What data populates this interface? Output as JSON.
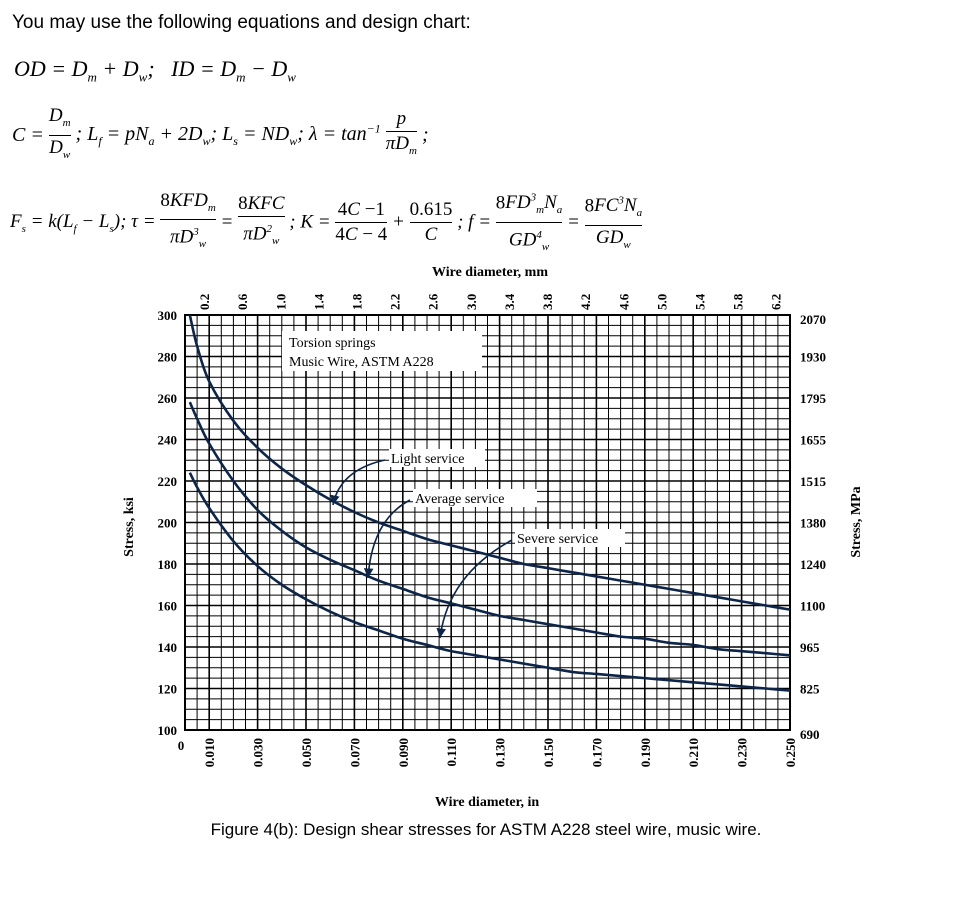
{
  "intro": "You may use the following equations and design chart:",
  "equations": {
    "line1": "OD = D_m + D_w;   ID = D_m − D_w",
    "line2": "C = D_m / D_w;   L_f = pN_a + 2D_w;   L_s = ND_w;   λ = tan⁻¹ p/(πD_m);",
    "line3": "F_s = k(L_f − L_s);   τ = 8KFD_m/(πD_w³) = 8KFC/(πD_w²);   K = (4C−1)/(4C−4) + 0.615/C;   f = 8FD_m³N_a/(GD_w⁴) = 8FC³N_a/(GD_w)"
  },
  "caption": "Figure 4(b): Design shear stresses for ASTM A228 steel wire, music wire.",
  "chart_data": {
    "type": "line",
    "title": "Torsion springs",
    "subtitle": "Music Wire, ASTM A228",
    "xlabel": "Wire diameter, in",
    "xlabel_top": "Wire diameter, mm",
    "ylabel": "Stress, ksi",
    "ylabel_right": "Stress, MPa",
    "xlim": [
      0,
      0.25
    ],
    "ylim": [
      100,
      300
    ],
    "x_ticks": [
      "0",
      "0.010",
      "0.030",
      "0.050",
      "0.070",
      "0.090",
      "0.110",
      "0.130",
      "0.150",
      "0.170",
      "0.190",
      "0.210",
      "0.230",
      "0.250"
    ],
    "x_top_ticks": [
      "0.2",
      "0.6",
      "1.0",
      "1.4",
      "1.8",
      "2.2",
      "2.6",
      "3.0",
      "3.4",
      "3.8",
      "4.2",
      "4.6",
      "5.0",
      "5.4",
      "5.8",
      "6.2"
    ],
    "y_ticks": [
      "100",
      "120",
      "140",
      "160",
      "180",
      "200",
      "220",
      "240",
      "260",
      "280",
      "300"
    ],
    "y_right_ticks": [
      "690",
      "825",
      "965",
      "1100",
      "1240",
      "1380",
      "1515",
      "1655",
      "1795",
      "1930",
      "2070"
    ],
    "grid": true,
    "series": [
      {
        "name": "Light service",
        "x": [
          0.002,
          0.005,
          0.01,
          0.02,
          0.03,
          0.04,
          0.05,
          0.06,
          0.07,
          0.08,
          0.09,
          0.1,
          0.11,
          0.12,
          0.13,
          0.14,
          0.15,
          0.16,
          0.17,
          0.18,
          0.19,
          0.2,
          0.21,
          0.22,
          0.23,
          0.24,
          0.25
        ],
        "y": [
          300,
          285,
          268,
          249,
          236,
          226,
          218,
          211,
          205,
          200,
          196,
          192,
          189,
          186,
          183,
          180,
          178,
          176,
          174,
          172,
          170,
          168,
          166,
          164,
          162,
          160,
          158
        ]
      },
      {
        "name": "Average service",
        "x": [
          0.002,
          0.005,
          0.01,
          0.02,
          0.03,
          0.04,
          0.05,
          0.06,
          0.07,
          0.08,
          0.09,
          0.1,
          0.11,
          0.12,
          0.13,
          0.14,
          0.15,
          0.16,
          0.17,
          0.18,
          0.19,
          0.2,
          0.21,
          0.22,
          0.23,
          0.24,
          0.25
        ],
        "y": [
          258,
          250,
          238,
          220,
          206,
          196,
          188,
          182,
          177,
          172,
          168,
          164,
          161,
          158,
          155,
          153,
          151,
          149,
          147,
          145,
          144,
          142,
          141,
          139,
          138,
          137,
          136
        ]
      },
      {
        "name": "Severe service",
        "x": [
          0.002,
          0.005,
          0.01,
          0.02,
          0.03,
          0.04,
          0.05,
          0.06,
          0.07,
          0.08,
          0.09,
          0.1,
          0.11,
          0.12,
          0.13,
          0.14,
          0.15,
          0.16,
          0.17,
          0.18,
          0.19,
          0.2,
          0.21,
          0.22,
          0.23,
          0.24,
          0.25
        ],
        "y": [
          224,
          217,
          207,
          191,
          179,
          170,
          163,
          157,
          152,
          148,
          144,
          141,
          138,
          136,
          134,
          132,
          130,
          128,
          127,
          126,
          125,
          124,
          123,
          122,
          121,
          120,
          119
        ]
      }
    ]
  }
}
